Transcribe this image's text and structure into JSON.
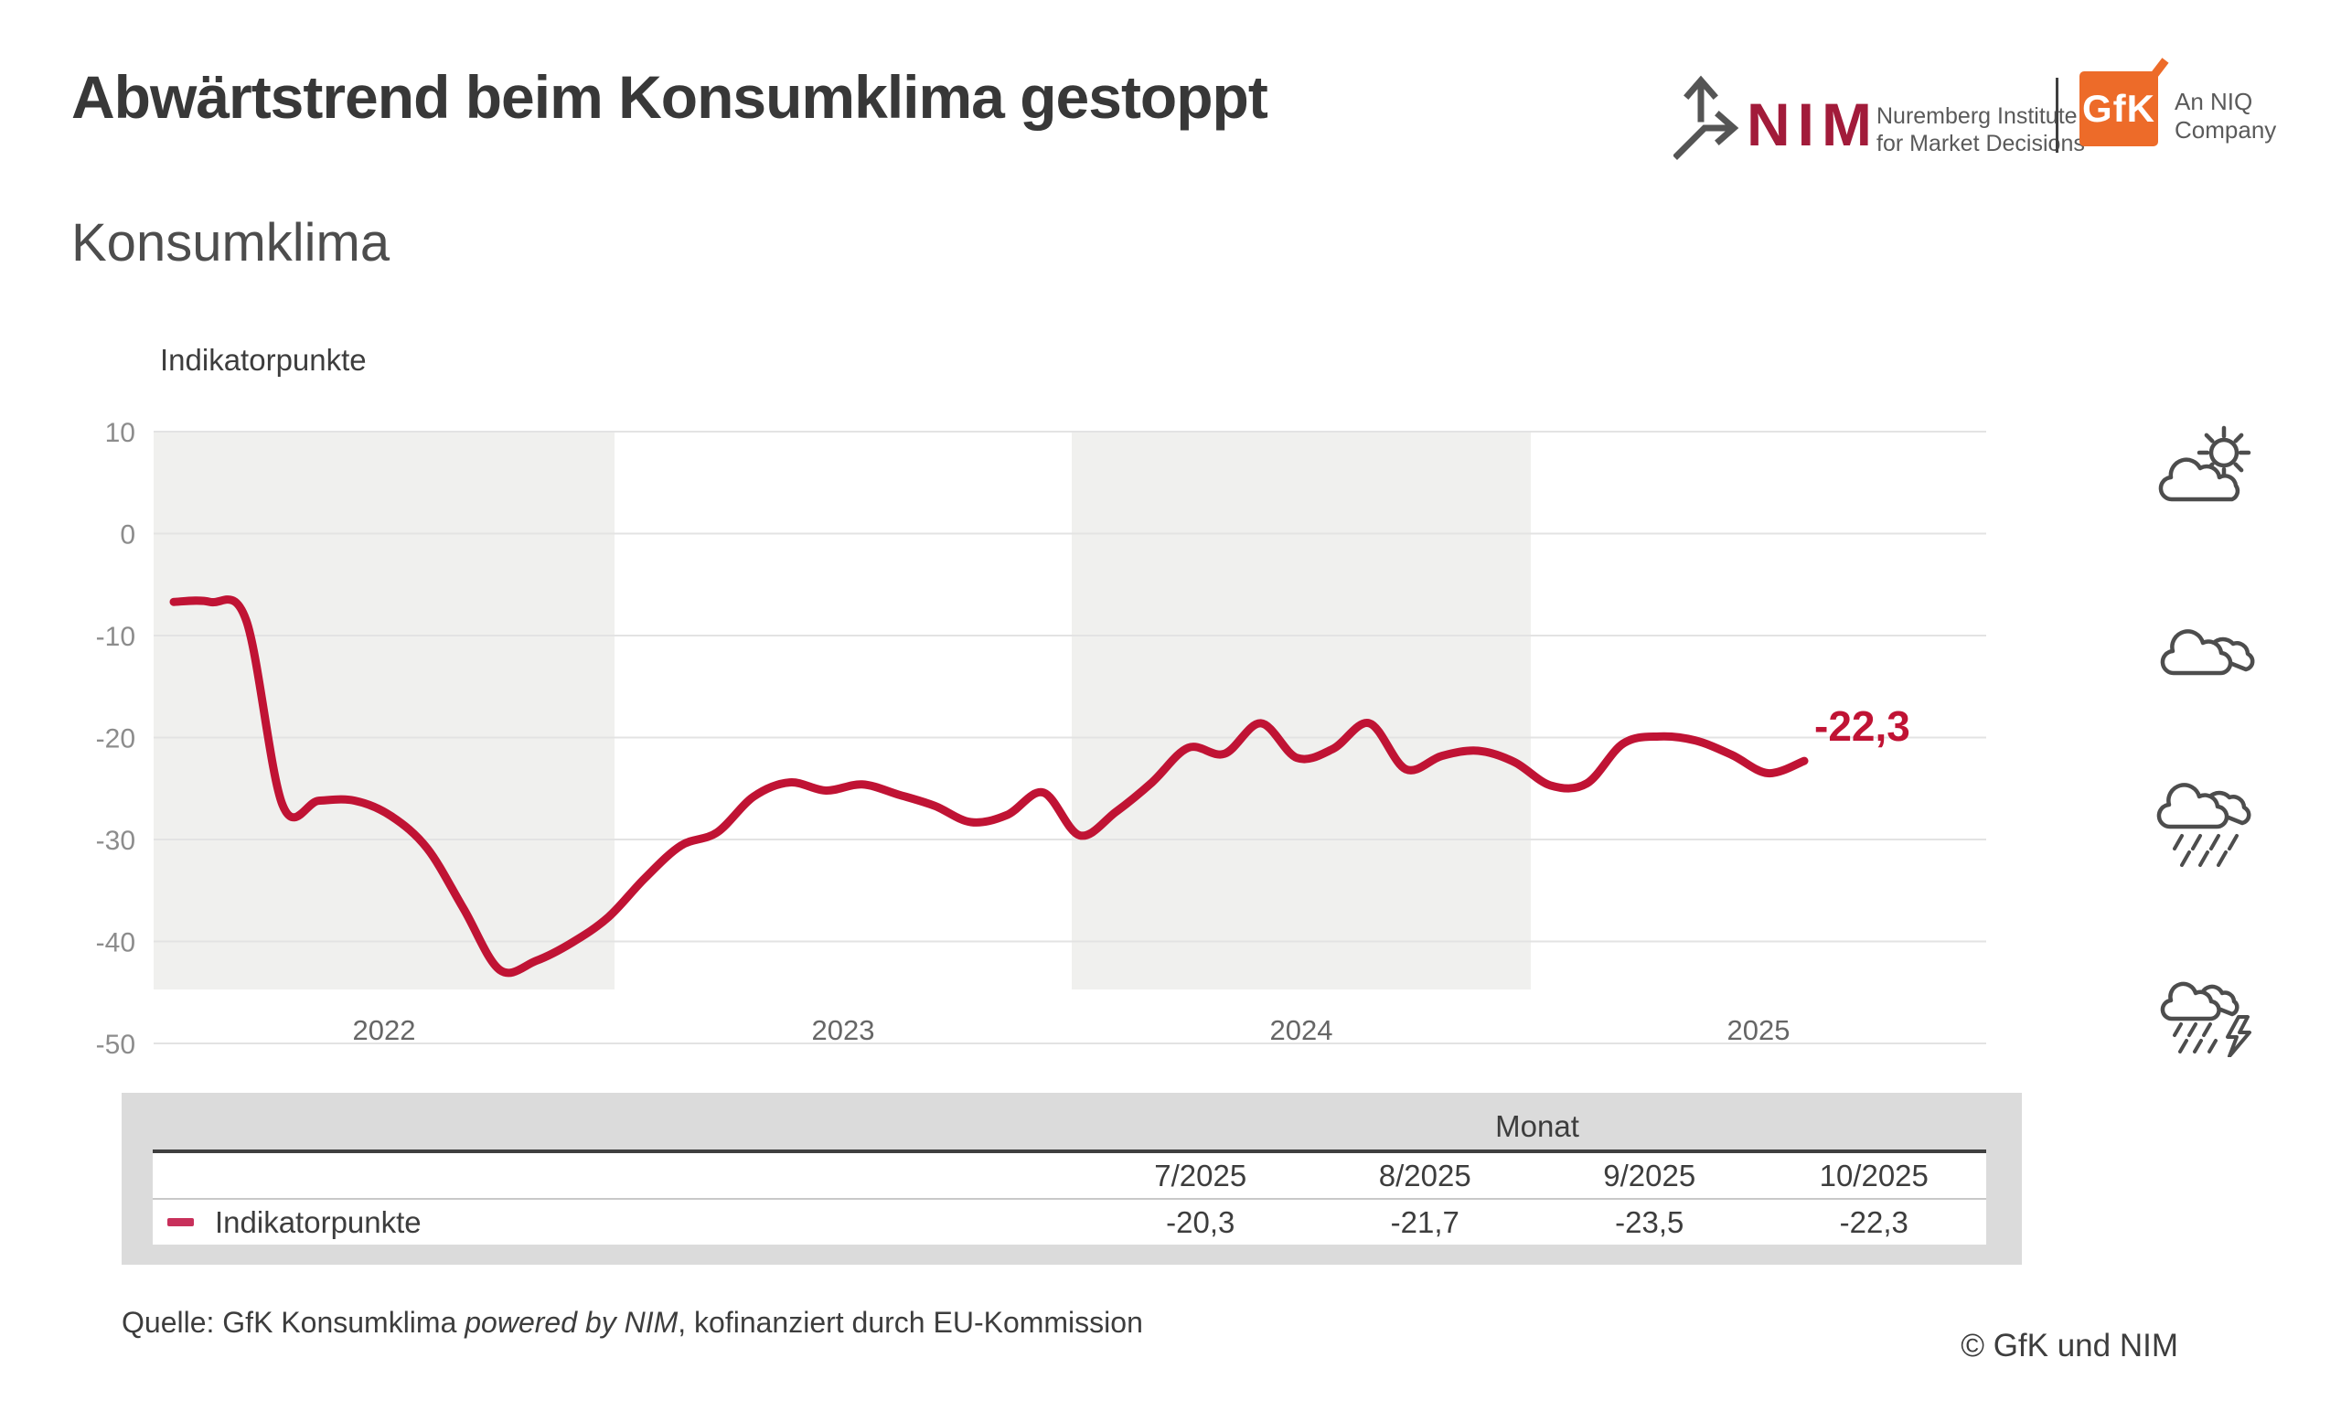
{
  "header": {
    "title": "Abwärtstrend beim Konsumklima gestoppt",
    "nim_logo": {
      "wordmark": "NIM",
      "caption_line1": "Nuremberg Institute",
      "caption_line2": "for Market Decisions",
      "brand_color": "#a21b3a"
    },
    "gfk_logo": {
      "wordmark": "GfK",
      "caption_line1": "An NIQ",
      "caption_line2": "Company",
      "brand_color": "#ed6b29"
    }
  },
  "chart": {
    "subtitle": "Konsumklima",
    "y_axis_title": "Indikatorpunkte"
  },
  "chart_data": {
    "type": "line",
    "title": "Konsumklima",
    "ylabel": "Indikatorpunkte",
    "ylim": [
      -50,
      10
    ],
    "y_ticks": [
      10,
      0,
      -10,
      -20,
      -30,
      -40,
      -50
    ],
    "grid": true,
    "x_year_labels": [
      "2022",
      "2023",
      "2024",
      "2025"
    ],
    "shaded_year_bands": [
      "2022",
      "2024"
    ],
    "x": [
      "1/2022",
      "2/2022",
      "3/2022",
      "4/2022",
      "5/2022",
      "6/2022",
      "7/2022",
      "8/2022",
      "9/2022",
      "10/2022",
      "11/2022",
      "12/2022",
      "1/2023",
      "2/2023",
      "3/2023",
      "4/2023",
      "5/2023",
      "6/2023",
      "7/2023",
      "8/2023",
      "9/2023",
      "10/2023",
      "11/2023",
      "12/2023",
      "1/2024",
      "2/2024",
      "3/2024",
      "4/2024",
      "5/2024",
      "6/2024",
      "7/2024",
      "8/2024",
      "9/2024",
      "10/2024",
      "11/2024",
      "12/2024",
      "1/2025",
      "2/2025",
      "3/2025",
      "4/2025",
      "5/2025",
      "6/2025",
      "7/2025",
      "8/2025",
      "9/2025",
      "10/2025"
    ],
    "series": [
      {
        "name": "Indikatorpunkte",
        "color": "#c01334",
        "values": [
          -6.7,
          -6.7,
          -8.5,
          -26.6,
          -26.2,
          -26.2,
          -27.7,
          -30.9,
          -36.8,
          -42.8,
          -41.9,
          -40.1,
          -37.6,
          -33.8,
          -30.6,
          -29.3,
          -25.8,
          -24.4,
          -25.2,
          -24.6,
          -25.6,
          -26.7,
          -28.3,
          -27.6,
          -25.4,
          -29.6,
          -27.3,
          -24.4,
          -21.0,
          -21.6,
          -18.6,
          -22.0,
          -21.1,
          -18.6,
          -23.1,
          -21.8,
          -21.3,
          -22.4,
          -24.7,
          -24.5,
          -20.6,
          -19.9,
          -20.3,
          -21.7,
          -23.5,
          -22.3
        ]
      }
    ],
    "end_label": "-22,3",
    "legend_position": "table-below"
  },
  "weather_icons": [
    "sun-behind-cloud",
    "clouds",
    "rain-cloud",
    "storm-cloud"
  ],
  "table": {
    "group_header": "Monat",
    "columns": [
      "7/2025",
      "8/2025",
      "9/2025",
      "10/2025"
    ],
    "rows": [
      {
        "label": "Indikatorpunkte",
        "legend_color": "#c8305b",
        "values": [
          "-20,3",
          "-21,7",
          "-23,5",
          "-22,3"
        ]
      }
    ]
  },
  "footer": {
    "source_prefix": "Quelle: GfK Konsumklima ",
    "source_italic": "powered by NIM",
    "source_suffix": ", kofinanziert durch EU-Kommission",
    "copyright": "© GfK und NIM"
  }
}
